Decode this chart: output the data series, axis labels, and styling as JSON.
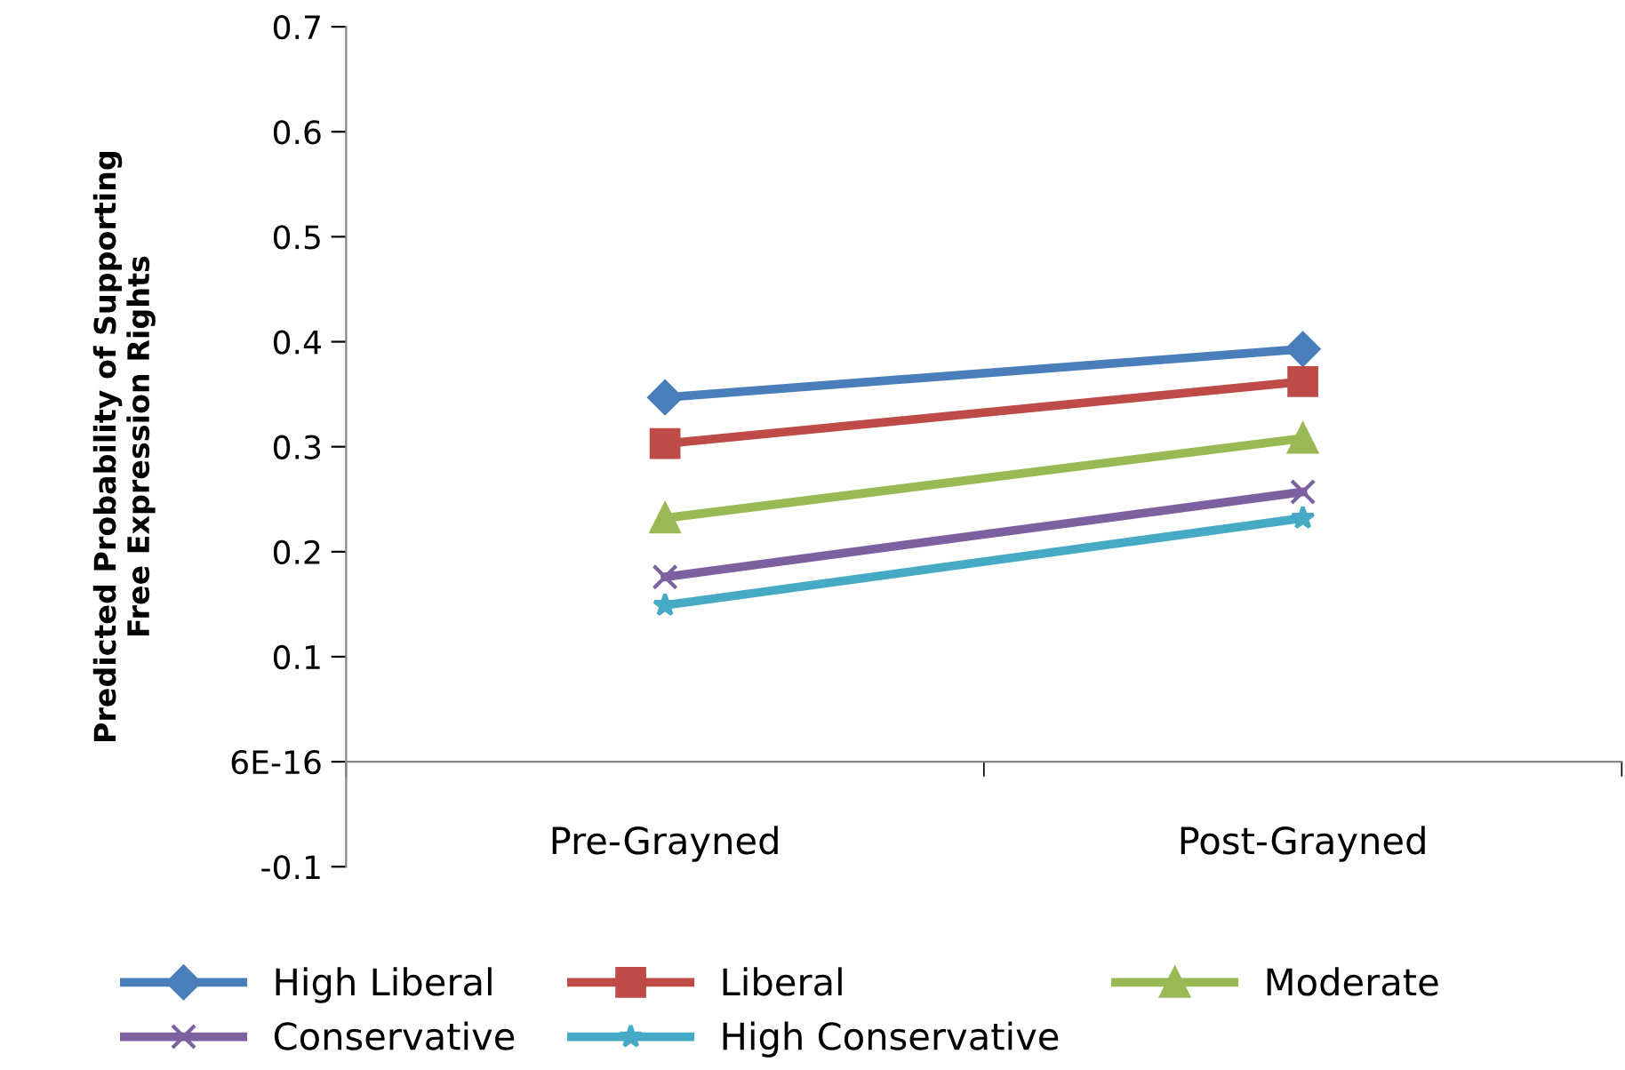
{
  "chart_data": {
    "type": "line",
    "ylabel": "Predicted Probability of Supporting\nFree Expression Rights",
    "categories": [
      "Pre-Grayned",
      "Post-Grayned"
    ],
    "series": [
      {
        "name": "High Liberal",
        "color": "#4a7ebb",
        "marker": "diamond",
        "values": [
          0.347,
          0.393
        ]
      },
      {
        "name": "Liberal",
        "color": "#be4b48",
        "marker": "square",
        "values": [
          0.303,
          0.362
        ]
      },
      {
        "name": "Moderate",
        "color": "#98b954",
        "marker": "triangle",
        "values": [
          0.232,
          0.308
        ]
      },
      {
        "name": "Conservative",
        "color": "#7d60a0",
        "marker": "cross",
        "values": [
          0.176,
          0.257
        ]
      },
      {
        "name": "High Conservative",
        "color": "#46aac5",
        "marker": "star",
        "values": [
          0.149,
          0.232
        ]
      }
    ],
    "ylim": [
      -0.1,
      0.7
    ],
    "yticks": [
      -0.1,
      {
        "value": 0,
        "label": "6E-16"
      },
      0.1,
      0.2,
      0.3,
      0.4,
      0.5,
      0.6,
      0.7
    ],
    "grid": false,
    "legend": "bottom",
    "line_style": "solid"
  }
}
